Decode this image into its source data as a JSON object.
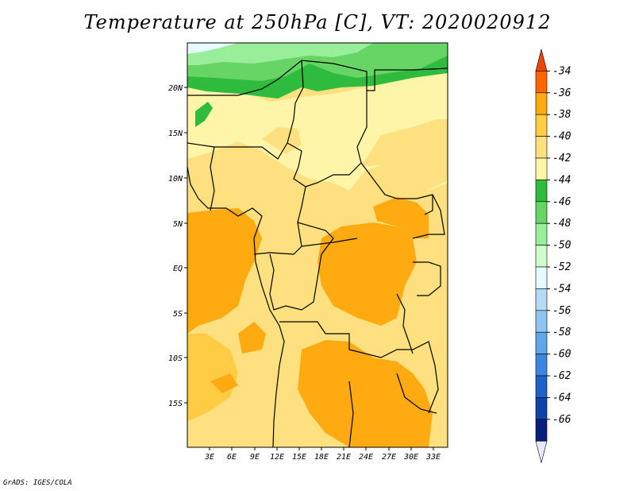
{
  "title": "Temperature at 250hPa [C], VT: 2020020912",
  "credit": "GrADS: IGES/COLA",
  "map": {
    "lon_labels": [
      "3E",
      "6E",
      "9E",
      "12E",
      "15E",
      "18E",
      "21E",
      "24E",
      "27E",
      "30E",
      "33E"
    ],
    "lat_labels": [
      "20N",
      "15N",
      "10N",
      "5N",
      "EQ",
      "5S",
      "10S",
      "15S"
    ]
  },
  "colorbar": {
    "levels": [
      "-34",
      "-36",
      "-38",
      "-40",
      "-42",
      "-44",
      "-46",
      "-48",
      "-50",
      "-52",
      "-54",
      "-56",
      "-58",
      "-60",
      "-62",
      "-64",
      "-66"
    ],
    "colors": [
      "#ee4400",
      "#ff6600",
      "#ffaa11",
      "#ffcc44",
      "#ffe080",
      "#fff5a8",
      "#2fbb3d",
      "#66d566",
      "#99ee99",
      "#ccffcc",
      "#e6fbff",
      "#b5dcf4",
      "#8fc3f0",
      "#5fa6ea",
      "#3b87dd",
      "#1c62c8",
      "#0f43a8",
      "#0a1f7a",
      "#e8e8ff"
    ]
  }
}
